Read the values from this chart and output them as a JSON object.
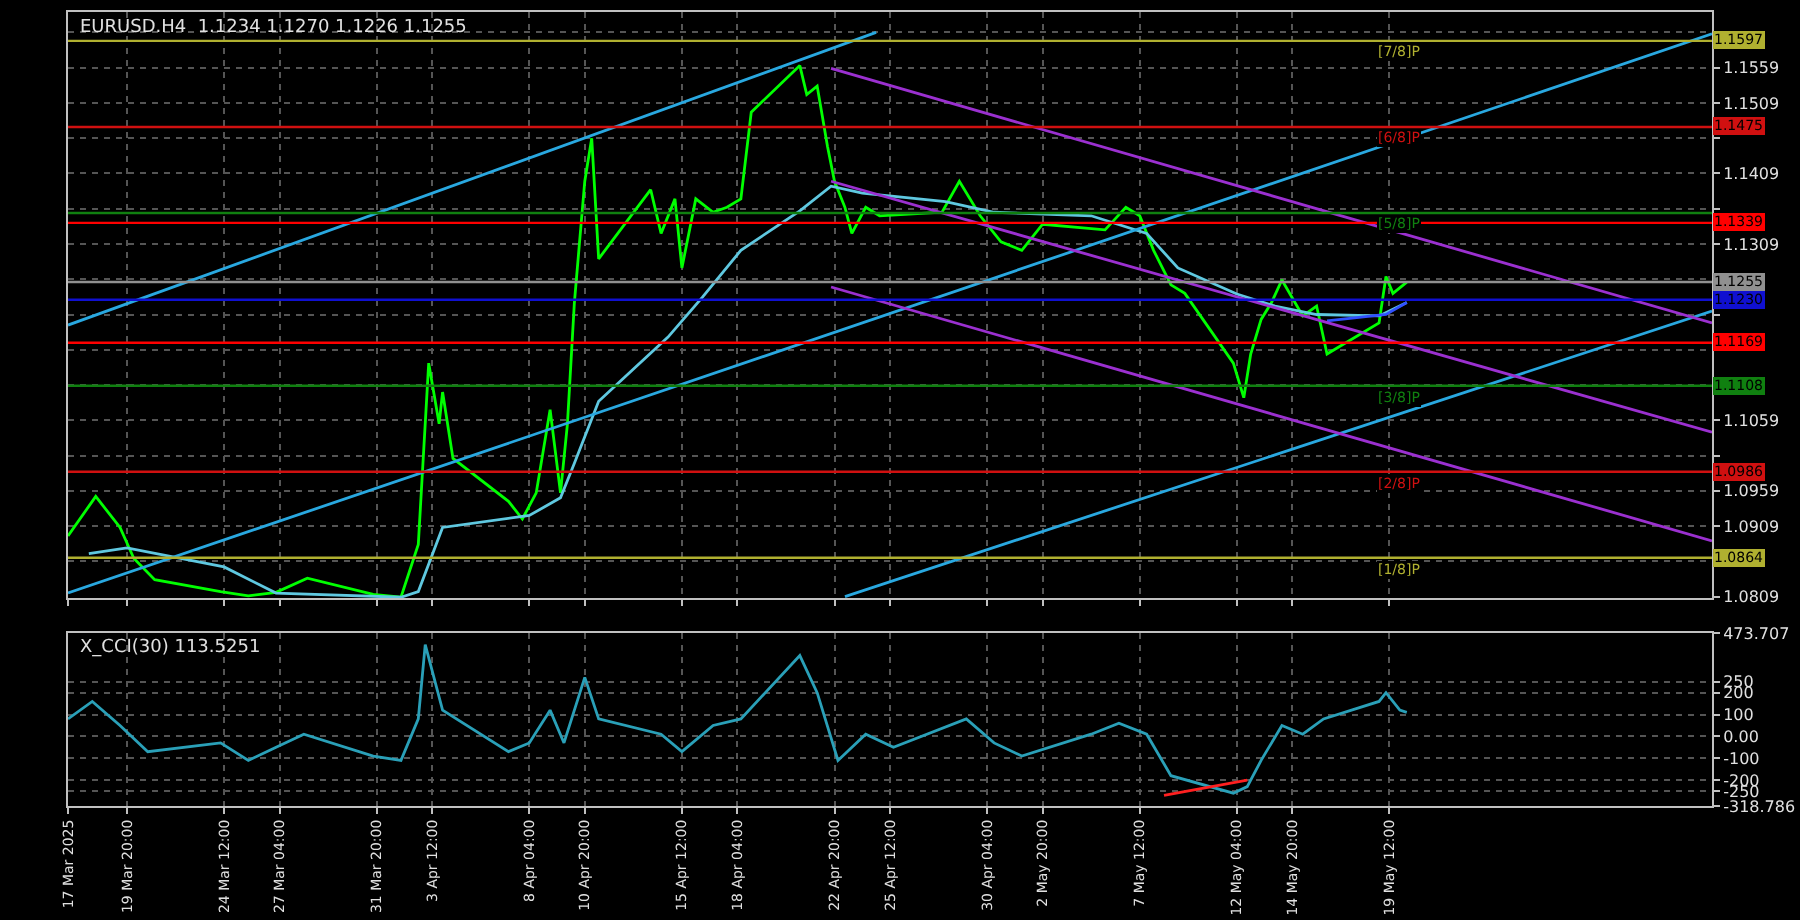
{
  "chart_data": [
    {
      "type": "line",
      "title": "EURUSD.H4  1.1234 1.1270 1.1226 1.1255",
      "tick_labels": "y",
      "grid": true,
      "xlim": [
        "2025-03-17T00:00",
        "2025-06-04T00:00"
      ],
      "xticks": [
        {
          "value": "2025-03-17T00:00",
          "label": null
        },
        {
          "value": "2025-03-19T20:00",
          "label": null
        },
        {
          "value": "2025-03-24T12:00",
          "label": null
        },
        {
          "value": "2025-03-27T04:00",
          "label": null
        },
        {
          "value": "2025-03-31T20:00",
          "label": null
        },
        {
          "value": "2025-04-03T12:00",
          "label": null
        },
        {
          "value": "2025-04-08T04:00",
          "label": null
        },
        {
          "value": "2025-04-10T20:00",
          "label": null
        },
        {
          "value": "2025-04-15T12:00",
          "label": null
        },
        {
          "value": "2025-04-18T04:00",
          "label": null
        },
        {
          "value": "2025-04-22T20:00",
          "label": null
        },
        {
          "value": "2025-04-25T12:00",
          "label": null
        },
        {
          "value": "2025-04-30T04:00",
          "label": null
        },
        {
          "value": "2025-05-02T20:00",
          "label": null
        },
        {
          "value": "2025-05-07T12:00",
          "label": null
        },
        {
          "value": "2025-05-12T04:00",
          "label": null
        },
        {
          "value": "2025-05-14T20:00",
          "label": null
        },
        {
          "value": "2025-05-19T12:00",
          "label": null
        }
      ],
      "ylim": [
        1.0807,
        1.1638
      ],
      "yticks": [
        {
          "value": 1.1609,
          "label": null
        },
        1.1559,
        1.1509,
        {
          "value": 1.1459,
          "label": null
        },
        1.1409,
        {
          "value": 1.1359,
          "label": null
        },
        1.1309,
        {
          "value": 1.1259,
          "label": null
        },
        {
          "value": 1.1209,
          "label": null
        },
        {
          "value": 1.1159,
          "label": null
        },
        {
          "value": 1.1109,
          "label": null
        },
        1.1059,
        {
          "value": 1.1009,
          "label": null
        },
        1.0959,
        1.0909,
        {
          "value": 1.0859,
          "label": null
        },
        1.0809
      ],
      "annotations": [
        {
          "text": "[7/8]P",
          "x": "2025-05-20T00:00",
          "y": 1.1597
        },
        {
          "text": "[6/8]P",
          "x": "2025-05-20T00:00",
          "y": 1.1475
        },
        {
          "text": "[5/8]P",
          "x": "2025-05-20T00:00",
          "y": 1.1353
        },
        {
          "text": "[3/8]P",
          "x": "2025-05-20T00:00",
          "y": 1.1108
        },
        {
          "text": "[2/8]P",
          "x": "2025-05-20T00:00",
          "y": 1.0986
        },
        {
          "text": "[1/8]P",
          "x": "2025-05-20T00:00",
          "y": 1.0864
        }
      ],
      "series": [
        {
          "color": "#00ff00",
          "x": [
            "2025-03-17T00:00",
            "2025-03-18T04:00",
            "2025-03-18T08:00",
            "2025-03-19T12:00",
            "2025-03-20T04:00",
            "2025-03-21T04:00",
            "2025-03-24T08:00",
            "2025-03-25T16:00",
            "2025-03-27T00:00",
            "2025-03-28T12:00",
            "2025-03-31T16:00",
            "2025-04-02T00:00",
            "2025-04-02T20:00",
            "2025-04-03T08:00",
            "2025-04-03T20:00",
            "2025-04-04T00:00",
            "2025-04-04T12:00",
            "2025-04-07T04:00",
            "2025-04-07T20:00",
            "2025-04-08T12:00",
            "2025-04-09T04:00",
            "2025-04-09T16:00",
            "2025-04-10T00:00",
            "2025-04-10T08:00",
            "2025-04-10T20:00",
            "2025-04-11T04:00",
            "2025-04-11T12:00",
            "2025-04-14T00:00",
            "2025-04-14T12:00",
            "2025-04-15T04:00",
            "2025-04-15T12:00",
            "2025-04-16T04:00",
            "2025-04-17T00:00",
            "2025-04-17T16:00",
            "2025-04-18T08:00",
            "2025-04-18T20:00",
            "2025-04-21T04:00",
            "2025-04-21T12:00",
            "2025-04-22T00:00",
            "2025-04-22T12:00",
            "2025-04-22T20:00",
            "2025-04-23T08:00",
            "2025-04-23T16:00",
            "2025-04-24T08:00",
            "2025-04-25T00:00",
            "2025-04-28T00:00",
            "2025-04-28T20:00",
            "2025-04-29T20:00",
            "2025-04-30T20:00",
            "2025-05-01T20:00",
            "2025-05-02T20:00",
            "2025-05-05T20:00",
            "2025-05-06T20:00",
            "2025-05-07T12:00",
            "2025-05-08T04:00",
            "2025-05-09T00:00",
            "2025-05-09T16:00",
            "2025-05-12T00:00",
            "2025-05-12T12:00",
            "2025-05-12T20:00",
            "2025-05-13T08:00",
            "2025-05-13T20:00",
            "2025-05-14T08:00",
            "2025-05-15T08:00",
            "2025-05-16T00:00",
            "2025-05-16T12:00",
            "2025-05-19T00:00",
            "2025-05-19T08:00",
            "2025-05-19T16:00",
            "2025-05-20T08:00"
          ],
          "values": [
            1.0895,
            1.0944,
            1.0951,
            1.0907,
            1.0863,
            1.0833,
            1.0816,
            1.081,
            1.0815,
            1.0835,
            1.0812,
            1.0808,
            1.0883,
            1.114,
            1.1054,
            1.1099,
            1.1005,
            1.0944,
            1.0919,
            1.0956,
            1.1074,
            1.0956,
            1.1054,
            1.1226,
            1.1398,
            1.1459,
            1.1288,
            1.1386,
            1.1324,
            1.1373,
            1.1275,
            1.1373,
            1.1354,
            1.1361,
            1.1373,
            1.1496,
            1.1562,
            1.1521,
            1.1533,
            1.1447,
            1.1398,
            1.1361,
            1.1324,
            1.1361,
            1.1349,
            1.1354,
            1.1398,
            1.1349,
            1.1312,
            1.13,
            1.1337,
            1.1329,
            1.1361,
            1.1349,
            1.13,
            1.1251,
            1.1239,
            1.114,
            1.1091,
            1.1153,
            1.1202,
            1.1226,
            1.1258,
            1.1207,
            1.1221,
            1.1153,
            1.1197,
            1.1263,
            1.1239,
            1.1255
          ]
        },
        {
          "color": "#5fc8e0",
          "x": [
            "2025-03-18T00:00",
            "2025-03-19T20:00",
            "2025-03-24T12:00",
            "2025-03-27T00:00",
            "2025-04-02T00:00",
            "2025-04-02T20:00",
            "2025-04-04T00:00",
            "2025-04-08T04:00",
            "2025-04-09T16:00",
            "2025-04-10T08:00",
            "2025-04-11T12:00",
            "2025-04-14T20:00",
            "2025-04-16T12:00",
            "2025-04-18T08:00",
            "2025-04-21T04:00",
            "2025-04-22T16:00",
            "2025-04-24T04:00",
            "2025-04-28T04:00",
            "2025-04-30T12:00",
            "2025-05-05T04:00",
            "2025-05-07T20:00",
            "2025-05-09T08:00",
            "2025-05-12T04:00",
            "2025-05-14T00:00",
            "2025-05-16T00:00",
            "2025-05-19T00:00",
            "2025-05-20T08:00"
          ],
          "values": [
            1.087,
            1.0878,
            1.0851,
            1.0814,
            1.0808,
            1.0816,
            1.0907,
            1.0924,
            1.0949,
            1.0998,
            1.1086,
            1.1177,
            1.1234,
            1.13,
            1.1356,
            1.1391,
            1.1381,
            1.1369,
            1.1354,
            1.1349,
            1.1324,
            1.1275,
            1.1238,
            1.1221,
            1.1209,
            1.1207,
            1.1226
          ]
        },
        {
          "color": "#3050ff",
          "x": [
            "2025-05-16T12:00",
            "2025-05-19T08:00",
            "2025-05-20T08:00"
          ],
          "values": [
            1.12,
            1.1209,
            1.1226
          ]
        },
        {
          "color": "#29a8e0",
          "x": [
            "2025-03-17T00:00",
            "2025-04-24T20:00"
          ],
          "values": [
            1.1194,
            1.1609
          ]
        },
        {
          "color": "#29a8e0",
          "x": [
            "2025-03-17T00:00",
            "2025-06-04T00:00"
          ],
          "values": [
            1.0814,
            1.1607
          ]
        },
        {
          "color": "#29a8e0",
          "x": [
            "2025-04-23T08:00",
            "2025-06-04T00:00"
          ],
          "values": [
            1.0809,
            1.1214
          ]
        },
        {
          "color": "#9b30d0",
          "x": [
            "2025-04-22T16:00",
            "2025-06-04T00:00"
          ],
          "values": [
            1.1558,
            1.1197
          ]
        },
        {
          "color": "#9b30d0",
          "x": [
            "2025-04-22T16:00",
            "2025-06-04T00:00"
          ],
          "values": [
            1.1398,
            1.1042
          ]
        },
        {
          "color": "#9b30d0",
          "x": [
            "2025-04-22T16:00",
            "2025-06-04T00:00"
          ],
          "values": [
            1.1248,
            1.0888
          ]
        }
      ],
      "ref_lines": [
        {
          "axis": "y",
          "value": 1.1597,
          "label": "1.1597",
          "color": "#b0b030"
        },
        {
          "axis": "y",
          "value": 1.1475,
          "label": "1.1475",
          "color": "#d01010"
        },
        {
          "axis": "y",
          "value": 1.1353,
          "label": null,
          "color": "#108010"
        },
        {
          "axis": "y",
          "value": 1.1339,
          "label": "1.1339",
          "color": "#ff0000"
        },
        {
          "axis": "y",
          "value": 1.1255,
          "label": "1.1255",
          "color": "#909090"
        },
        {
          "axis": "y",
          "value": 1.123,
          "label": "1.1230",
          "color": "#1010d0"
        },
        {
          "axis": "y",
          "value": 1.1169,
          "label": "1.1169",
          "color": "#ff0000"
        },
        {
          "axis": "y",
          "value": 1.1108,
          "label": "1.1108",
          "color": "#108010"
        },
        {
          "axis": "y",
          "value": 1.0986,
          "label": "1.0986",
          "color": "#d01010"
        },
        {
          "axis": "y",
          "value": 1.0864,
          "label": "1.0864",
          "color": "#b0b030"
        }
      ]
    },
    {
      "type": "line",
      "title": "X_CCI(30) 113.5251",
      "grid": true,
      "xlim": [
        "2025-03-17T00:00",
        "2025-06-04T00:00"
      ],
      "xticks": [
        {
          "value": "2025-03-17T00:00",
          "label": "17 Mar 2025"
        },
        {
          "value": "2025-03-19T20:00",
          "label": "19 Mar 20:00"
        },
        {
          "value": "2025-03-24T12:00",
          "label": "24 Mar 12:00"
        },
        {
          "value": "2025-03-27T04:00",
          "label": "27 Mar 04:00"
        },
        {
          "value": "2025-03-31T20:00",
          "label": "31 Mar 20:00"
        },
        {
          "value": "2025-04-03T12:00",
          "label": "3 Apr 12:00"
        },
        {
          "value": "2025-04-08T04:00",
          "label": "8 Apr 04:00"
        },
        {
          "value": "2025-04-10T20:00",
          "label": "10 Apr 20:00"
        },
        {
          "value": "2025-04-15T12:00",
          "label": "15 Apr 12:00"
        },
        {
          "value": "2025-04-18T04:00",
          "label": "18 Apr 04:00"
        },
        {
          "value": "2025-04-22T20:00",
          "label": "22 Apr 20:00"
        },
        {
          "value": "2025-04-25T12:00",
          "label": "25 Apr 12:00"
        },
        {
          "value": "2025-04-30T04:00",
          "label": "30 Apr 04:00"
        },
        {
          "value": "2025-05-02T20:00",
          "label": "2 May 20:00"
        },
        {
          "value": "2025-05-07T12:00",
          "label": "7 May 12:00"
        },
        {
          "value": "2025-05-12T04:00",
          "label": "12 May 04:00"
        },
        {
          "value": "2025-05-14T20:00",
          "label": "14 May 20:00"
        },
        {
          "value": "2025-05-19T12:00",
          "label": "19 May 12:00"
        }
      ],
      "ylim": [
        -318.786,
        473.707
      ],
      "yticks": [
        473.707,
        250,
        200,
        100,
        {
          "value": 0,
          "label": "0.00"
        },
        -100,
        -200,
        -250,
        -318.786
      ],
      "series": [
        {
          "color": "#2aa0b8",
          "x": [
            "2025-03-17T00:00",
            "2025-03-18T04:00",
            "2025-03-19T12:00",
            "2025-03-20T20:00",
            "2025-03-24T08:00",
            "2025-03-25T16:00",
            "2025-03-27T00:00",
            "2025-03-28T08:00",
            "2025-03-31T16:00",
            "2025-04-02T00:00",
            "2025-04-02T20:00",
            "2025-04-03T04:00",
            "2025-04-04T00:00",
            "2025-04-07T04:00",
            "2025-04-08T04:00",
            "2025-04-09T04:00",
            "2025-04-09T20:00",
            "2025-04-10T20:00",
            "2025-04-11T12:00",
            "2025-04-14T12:00",
            "2025-04-15T12:00",
            "2025-04-17T00:00",
            "2025-04-18T08:00",
            "2025-04-21T04:00",
            "2025-04-22T00:00",
            "2025-04-23T00:00",
            "2025-04-24T08:00",
            "2025-04-25T16:00",
            "2025-04-29T04:00",
            "2025-04-30T12:00",
            "2025-05-01T20:00",
            "2025-05-05T04:00",
            "2025-05-06T12:00",
            "2025-05-07T20:00",
            "2025-05-09T00:00",
            "2025-05-12T00:00",
            "2025-05-12T16:00",
            "2025-05-13T08:00",
            "2025-05-14T08:00",
            "2025-05-15T08:00",
            "2025-05-16T08:00",
            "2025-05-19T00:00",
            "2025-05-19T08:00",
            "2025-05-20T00:00",
            "2025-05-20T08:00"
          ],
          "values": [
            80,
            160,
            50,
            -70,
            -30,
            -110,
            -50,
            10,
            -90,
            -110,
            80,
            420,
            120,
            -70,
            -30,
            120,
            -30,
            270,
            80,
            10,
            -70,
            50,
            80,
            370,
            200,
            -110,
            10,
            -50,
            80,
            -30,
            -90,
            10,
            60,
            10,
            -180,
            -260,
            -230,
            -110,
            50,
            10,
            80,
            160,
            200,
            120,
            110
          ]
        },
        {
          "color": "#ff2020",
          "x": [
            "2025-05-08T16:00",
            "2025-05-12T16:00"
          ],
          "values": [
            -270,
            -200
          ]
        }
      ]
    }
  ]
}
